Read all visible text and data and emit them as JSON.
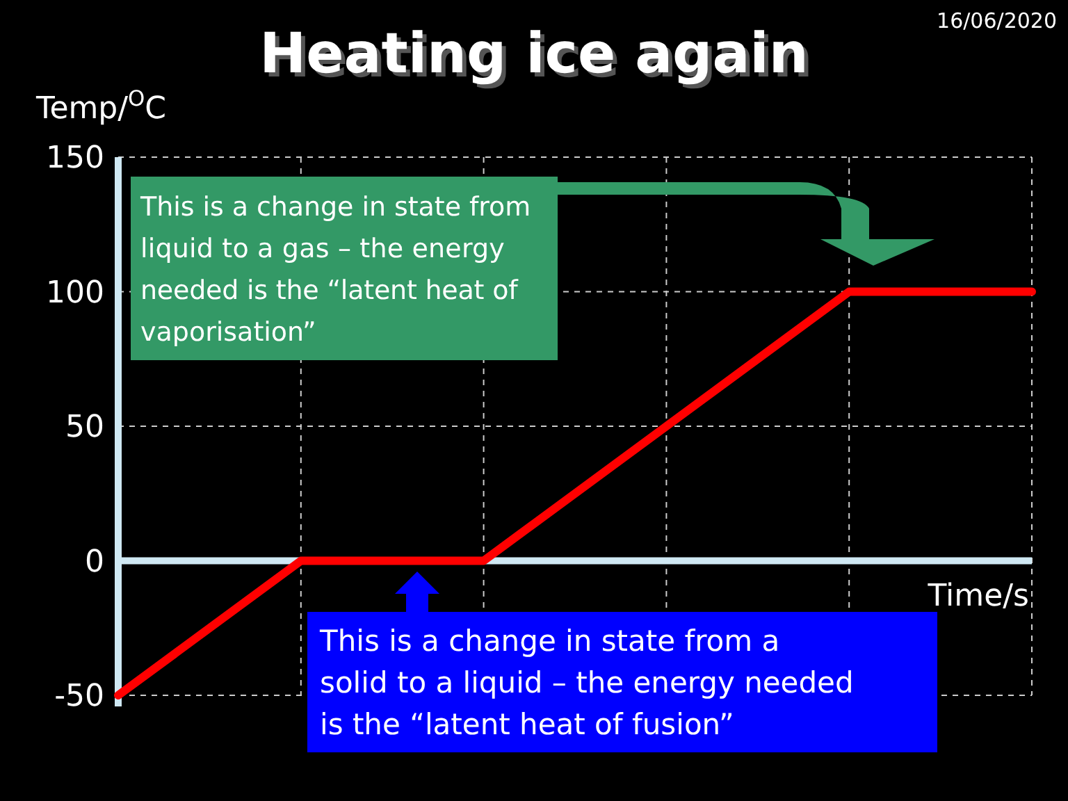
{
  "chart_data": {
    "type": "line",
    "title": "Heating ice again",
    "ylabel": "Temp/$^{O}$C",
    "xlabel": "Time/s",
    "categories": [
      null,
      null,
      null,
      null,
      null,
      null
    ],
    "series": [
      {
        "color": "#ff0000",
        "values": [
          -50,
          0,
          0,
          50,
          100,
          100
        ]
      }
    ],
    "ylim": [
      -50,
      150
    ],
    "yticks": [
      -50,
      0,
      50,
      100,
      150
    ],
    "grid": true,
    "marker": "none",
    "line_style": "solid",
    "annotations": [
      "16/06/2020",
      "This is a change in state from liquid to a gas – the energy needed is the “latent heat of vaporisation”",
      "This is a change in state from a solid to a liquid – the energy needed is the “latent heat of fusion”"
    ]
  }
}
